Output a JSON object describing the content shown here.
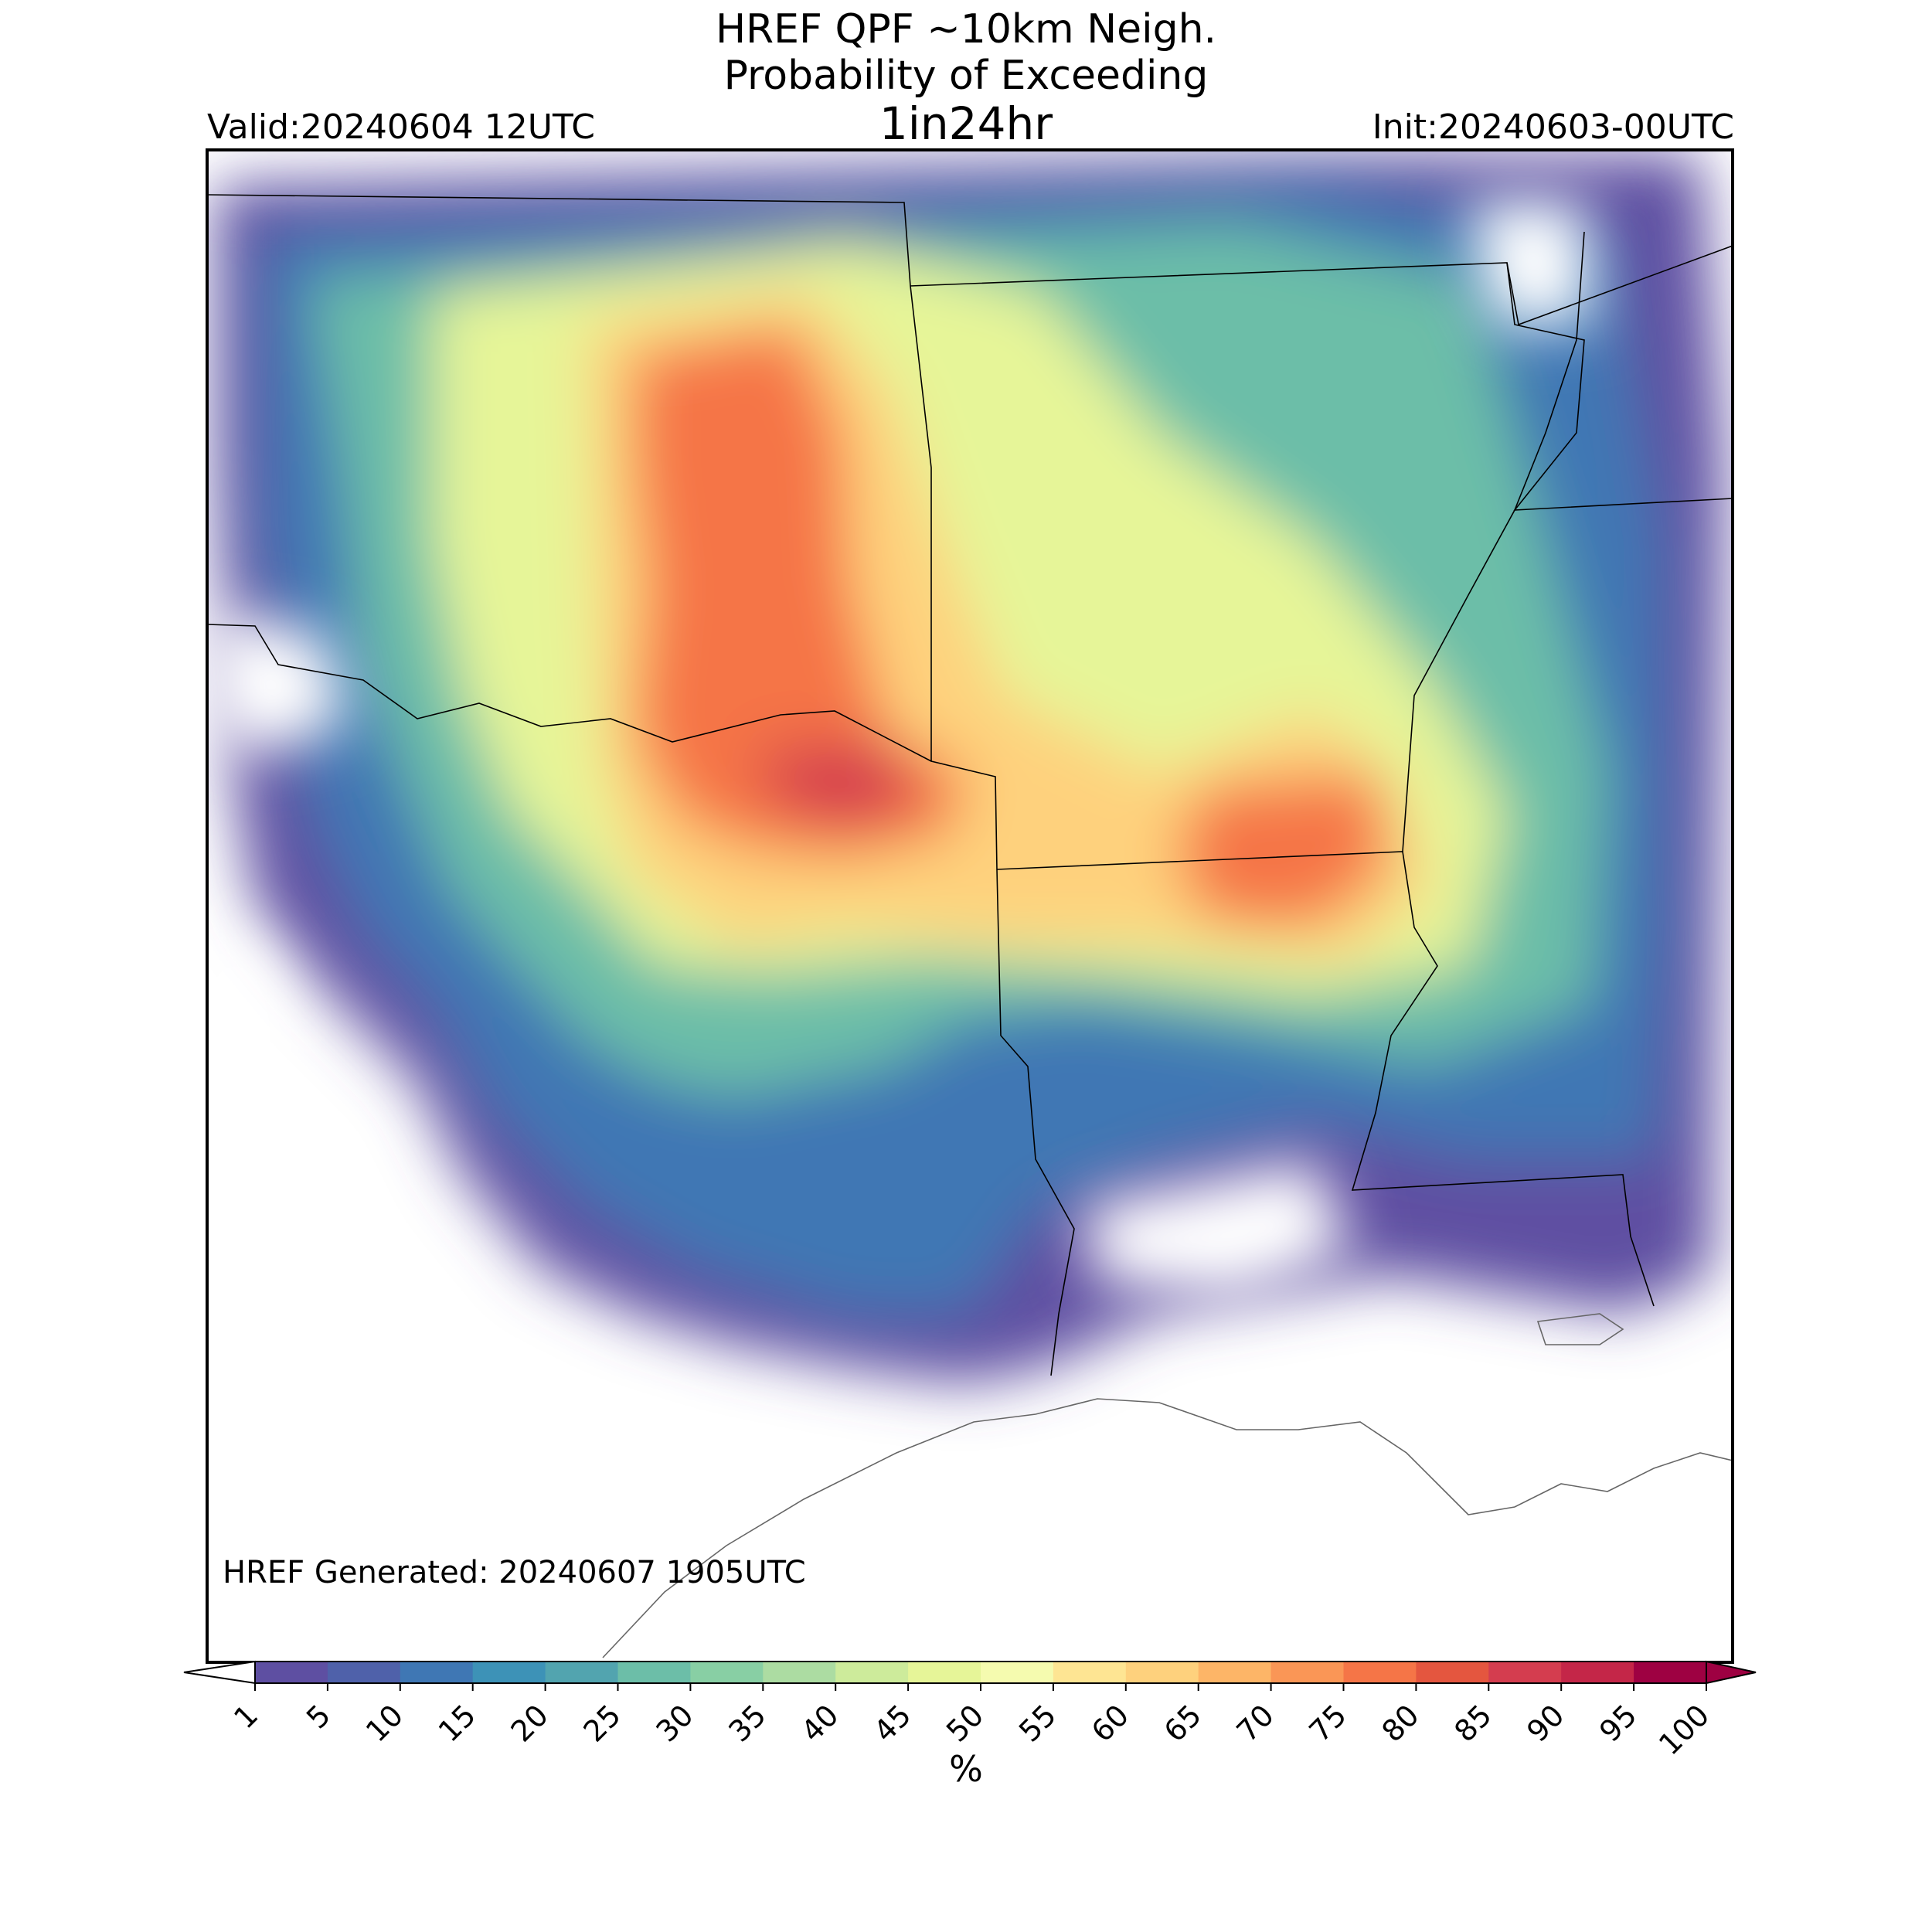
{
  "title": {
    "line1": "HREF QPF ~10km Neigh.",
    "line2": "Probability of Exceeding",
    "line3": "1in24hr"
  },
  "valid": "Valid:20240604 12UTC",
  "init": "Init:20240603-00UTC",
  "generated": "HREF Generated: 20240607 1905UTC",
  "colorbar": {
    "ticks": [
      "1",
      "5",
      "10",
      "15",
      "20",
      "25",
      "30",
      "35",
      "40",
      "45",
      "50",
      "55",
      "60",
      "65",
      "70",
      "75",
      "80",
      "85",
      "90",
      "95",
      "100"
    ],
    "colors": [
      "#5e4fa2",
      "#4f61aa",
      "#3f77b4",
      "#3d92b7",
      "#52a4af",
      "#6cbea8",
      "#88cfa4",
      "#acdca2",
      "#cdeb9b",
      "#e6f598",
      "#f5fbaf",
      "#fee593",
      "#fed17d",
      "#fdb567",
      "#fa9656",
      "#f57547",
      "#e4563f",
      "#d43d4f",
      "#c42648",
      "#9e0142"
    ],
    "over_color": "#9e0142",
    "under_color": "#ffffff",
    "label": "%"
  }
}
